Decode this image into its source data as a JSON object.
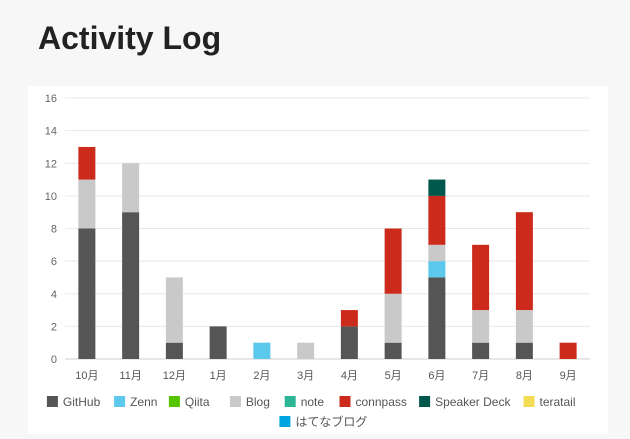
{
  "page": {
    "title": "Activity Log"
  },
  "chart_data": {
    "type": "bar",
    "stacked": true,
    "categories": [
      "10月",
      "11月",
      "12月",
      "1月",
      "2月",
      "3月",
      "4月",
      "5月",
      "6月",
      "7月",
      "8月",
      "9月"
    ],
    "ylim": [
      0,
      16
    ],
    "yticks": [
      0,
      2,
      4,
      6,
      8,
      10,
      12,
      14,
      16
    ],
    "grid": true,
    "legend_position": "bottom",
    "series": [
      {
        "name": "GitHub",
        "color": "#555555",
        "values": [
          8,
          9,
          1,
          2,
          0,
          0,
          2,
          1,
          5,
          1,
          1,
          0
        ]
      },
      {
        "name": "Zenn",
        "color": "#5bc8ec",
        "values": [
          0,
          0,
          0,
          0,
          1,
          0,
          0,
          0,
          1,
          0,
          0,
          0
        ]
      },
      {
        "name": "Qiita",
        "color": "#55c500",
        "values": [
          0,
          0,
          0,
          0,
          0,
          0,
          0,
          0,
          0,
          0,
          0,
          0
        ]
      },
      {
        "name": "Blog",
        "color": "#c9c9c9",
        "values": [
          3,
          3,
          4,
          0,
          0,
          1,
          0,
          3,
          1,
          2,
          2,
          0
        ]
      },
      {
        "name": "note",
        "color": "#2cb696",
        "values": [
          0,
          0,
          0,
          0,
          0,
          0,
          0,
          0,
          0,
          0,
          0,
          0
        ]
      },
      {
        "name": "connpass",
        "color": "#cc2b1c",
        "values": [
          2,
          0,
          0,
          0,
          0,
          0,
          1,
          4,
          3,
          4,
          6,
          1
        ]
      },
      {
        "name": "Speaker Deck",
        "color": "#00584c",
        "values": [
          0,
          0,
          0,
          0,
          0,
          0,
          0,
          0,
          1,
          0,
          0,
          0
        ]
      },
      {
        "name": "teratail",
        "color": "#f2dd55",
        "values": [
          0,
          0,
          0,
          0,
          0,
          0,
          0,
          0,
          0,
          0,
          0,
          0
        ]
      },
      {
        "name": "はてなブログ",
        "color": "#00a4de",
        "values": [
          0,
          0,
          0,
          0,
          0,
          0,
          0,
          0,
          0,
          0,
          0,
          0
        ]
      }
    ]
  }
}
